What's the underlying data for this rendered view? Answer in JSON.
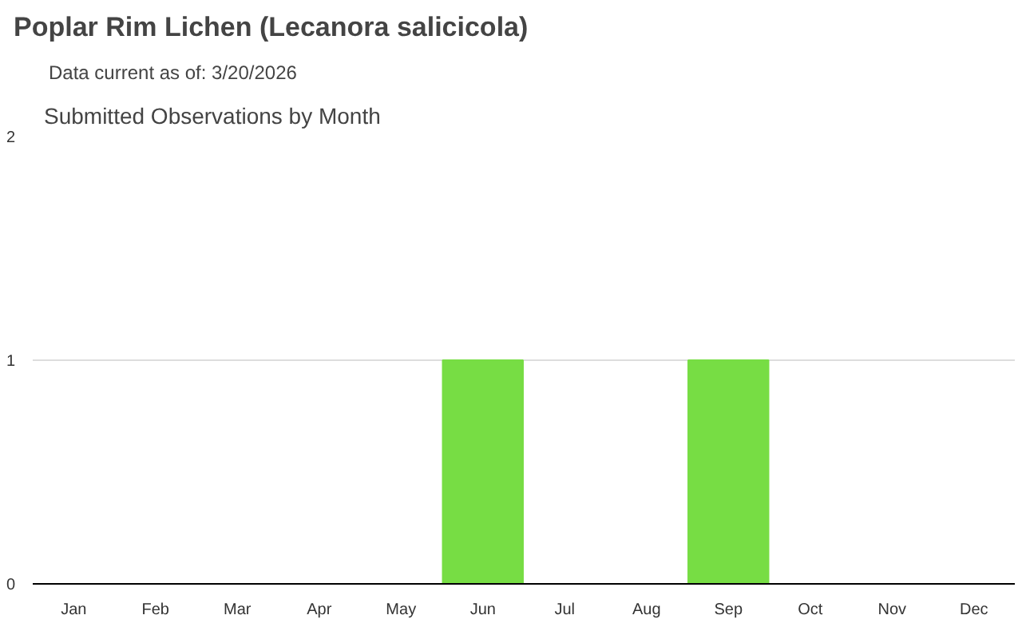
{
  "chart_data": {
    "type": "bar",
    "title": "Poplar Rim Lichen   (Lecanora salicicola)",
    "subtitle": "Data current as of: 3/20/2026",
    "annotations": [
      "Submitted Observations by Month"
    ],
    "categories": [
      "Jan",
      "Feb",
      "Mar",
      "Apr",
      "May",
      "Jun",
      "Jul",
      "Aug",
      "Sep",
      "Oct",
      "Nov",
      "Dec"
    ],
    "values": [
      0,
      0,
      0,
      0,
      0,
      1,
      0,
      0,
      1,
      0,
      0,
      0
    ],
    "color": "#77dd44",
    "ylim": [
      0,
      2
    ],
    "yticks": [
      0,
      1,
      2
    ],
    "grid": "y"
  }
}
